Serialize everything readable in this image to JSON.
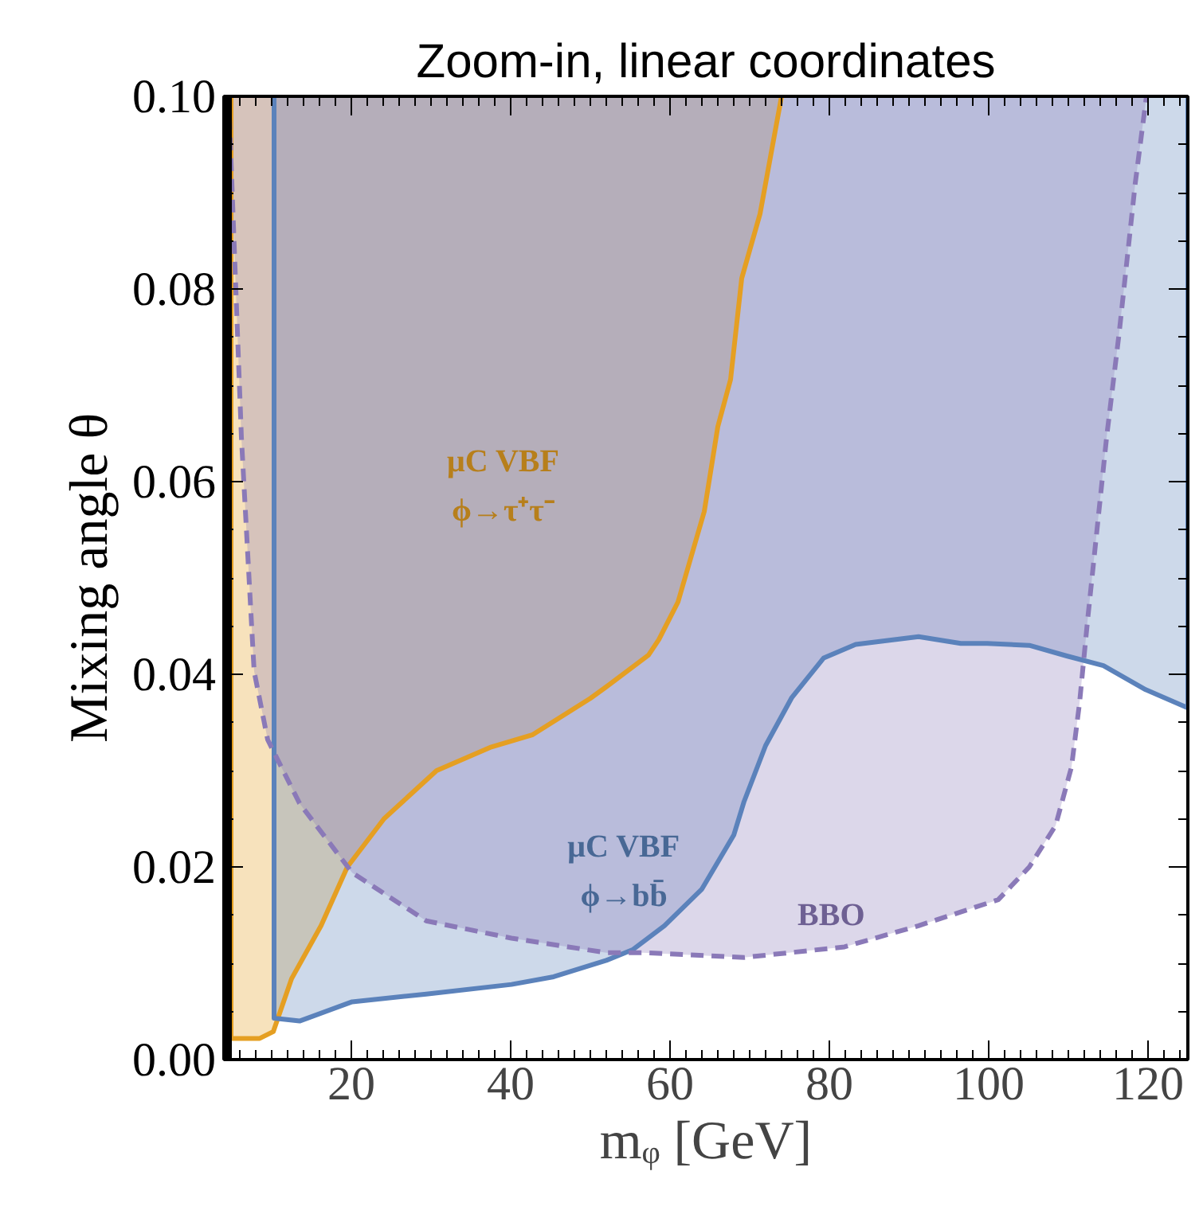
{
  "chart_data": {
    "type": "area",
    "title": "Zoom-in, linear coordinates",
    "xlabel": "mᵩ [GeV]",
    "ylabel": "Mixing angle θ",
    "xlim": [
      4,
      125
    ],
    "ylim": [
      0,
      0.1
    ],
    "xticks": [
      20,
      40,
      60,
      80,
      100,
      120
    ],
    "yticks": [
      {
        "value": 0,
        "label": "0.00"
      },
      {
        "value": 0.02,
        "label": "0.02"
      },
      {
        "value": 0.04,
        "label": "0.04"
      },
      {
        "value": 0.06,
        "label": "0.06"
      },
      {
        "value": 0.08,
        "label": "0.08"
      },
      {
        "value": 0.1,
        "label": "0.10"
      }
    ],
    "grid": false,
    "series": [
      {
        "color": "#e59f22",
        "line_style": "solid",
        "x": [
          4.9,
          4.9,
          8.5,
          10.2,
          12.5,
          16.2,
          19.5,
          24.1,
          30.7,
          37.4,
          42.7,
          50,
          52,
          57.3,
          58.6,
          61,
          64.3,
          66,
          67.6,
          69,
          71.3,
          74
        ],
        "values": [
          0.1,
          0.0022,
          0.0022,
          0.0029,
          0.0084,
          0.0139,
          0.02,
          0.025,
          0.03,
          0.0324,
          0.0337,
          0.0375,
          0.0387,
          0.042,
          0.0436,
          0.0475,
          0.0569,
          0.0657,
          0.0706,
          0.0811,
          0.0878,
          0.1
        ]
      },
      {
        "color": "#5b82bb",
        "line_style": "solid",
        "x": [
          10.3,
          10.3,
          13.5,
          20.1,
          29.4,
          40.1,
          45.4,
          52,
          55.3,
          59.3,
          64,
          68,
          69.3,
          72,
          75.3,
          79.3,
          83.3,
          91.2,
          96.5,
          99.8,
          105.1,
          109.8,
          114.4,
          119.7,
          125,
          125
        ],
        "values": [
          0.1,
          0.0043,
          0.004,
          0.006,
          0.0068,
          0.0078,
          0.0086,
          0.0103,
          0.0114,
          0.0139,
          0.0177,
          0.0233,
          0.0268,
          0.0326,
          0.0376,
          0.0417,
          0.0431,
          0.0439,
          0.0432,
          0.0432,
          0.043,
          0.0419,
          0.0409,
          0.0384,
          0.0365,
          0.1
        ]
      },
      {
        "color": "#8a79b8",
        "line_style": "dashed",
        "x": [
          4.6,
          5.2,
          6.2,
          7.5,
          7.8,
          9.5,
          13.5,
          20.1,
          29.4,
          40.1,
          52,
          56.6,
          69.3,
          81.9,
          91.2,
          101.2,
          105.1,
          108.4,
          110.4,
          111.4,
          112.4,
          114.8,
          116.4,
          118.4,
          119.8
        ],
        "values": [
          0.1,
          0.0866,
          0.0646,
          0.0448,
          0.0403,
          0.0332,
          0.0266,
          0.0194,
          0.0144,
          0.0126,
          0.0111,
          0.0111,
          0.0106,
          0.0117,
          0.0139,
          0.0166,
          0.02,
          0.0243,
          0.0304,
          0.037,
          0.0455,
          0.0646,
          0.0756,
          0.091,
          0.1
        ]
      }
    ],
    "bands": [
      {
        "axis": "x",
        "from": 4,
        "to": 5,
        "color": "#000000"
      }
    ],
    "annotations": [
      "μC VBF\nϕ→τ⁺τ⁻",
      "μC VBF\nϕ→bb̄",
      "BBO"
    ]
  }
}
